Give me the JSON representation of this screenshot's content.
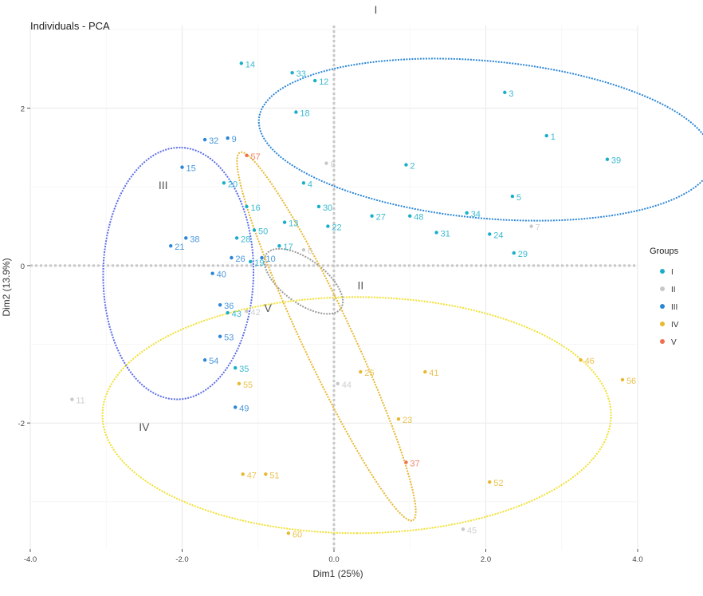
{
  "chart_data": {
    "type": "scatter",
    "title": "Individuals - PCA",
    "xlabel": "Dim1 (25%)",
    "ylabel": "Dim2 (13.9%)",
    "xlim": [
      -4.0,
      4.0
    ],
    "ylim": [
      -3.6,
      3.05
    ],
    "x_ticks": [
      -4.0,
      -2.0,
      0.0,
      2.0,
      4.0
    ],
    "x_tick_labels": [
      "-4.0",
      "-2.0",
      "0.0",
      "2.0",
      "4.0"
    ],
    "y_ticks": [
      2,
      0,
      -2
    ],
    "y_tick_labels": [
      "2",
      "0",
      "-2"
    ],
    "grid": true,
    "legend_title": "Groups",
    "legend_position": "right",
    "groups": [
      {
        "name": "I",
        "color": "#1AAFC9"
      },
      {
        "name": "II",
        "color": "#C8C8C8"
      },
      {
        "name": "III",
        "color": "#2A86D8"
      },
      {
        "name": "IV",
        "color": "#E8B830"
      },
      {
        "name": "V",
        "color": "#F07050"
      }
    ],
    "ellipses": [
      {
        "group": "I",
        "label": "I",
        "color": "#2A86D8",
        "cx": 2.0,
        "cy": 1.6,
        "rx": 3.0,
        "ry": 1.0,
        "angle": -5,
        "label_x": 0.55,
        "label_y": 3.2
      },
      {
        "group": "II",
        "label": "II",
        "color": "#999999",
        "cx": -0.4,
        "cy": -0.2,
        "rx": 0.6,
        "ry": 0.28,
        "angle": -35,
        "label_x": 0.35,
        "label_y": -0.3
      },
      {
        "group": "III",
        "label": "III",
        "color": "#5B6EE8",
        "cx": -2.05,
        "cy": -0.1,
        "rx": 1.6,
        "ry": 0.99,
        "angle": 89,
        "label_x": -2.25,
        "label_y": 0.97
      },
      {
        "group": "IV",
        "label": "IV",
        "color": "#F0E030",
        "cx": 0.3,
        "cy": -1.9,
        "rx": 1.5,
        "ry": 3.35,
        "angle": -90,
        "label_x": -2.5,
        "label_y": -2.1
      },
      {
        "group": "V",
        "label": "V",
        "color": "#E8B830",
        "cx": -0.1,
        "cy": -0.9,
        "rx": 2.6,
        "ry": 0.33,
        "angle": -64,
        "label_x": -0.87,
        "label_y": -0.59
      }
    ],
    "points": [
      {
        "label": "14",
        "x": -1.22,
        "y": 2.57,
        "group": "I"
      },
      {
        "label": "33",
        "x": -0.55,
        "y": 2.45,
        "group": "I"
      },
      {
        "label": "12",
        "x": -0.25,
        "y": 2.35,
        "group": "I"
      },
      {
        "label": "3",
        "x": 2.25,
        "y": 2.2,
        "group": "I"
      },
      {
        "label": "18",
        "x": -0.5,
        "y": 1.95,
        "group": "I"
      },
      {
        "label": "1",
        "x": 2.8,
        "y": 1.65,
        "group": "I"
      },
      {
        "label": "39",
        "x": 3.6,
        "y": 1.35,
        "group": "I"
      },
      {
        "label": "2",
        "x": 0.95,
        "y": 1.28,
        "group": "I"
      },
      {
        "label": "4",
        "x": -0.4,
        "y": 1.05,
        "group": "I"
      },
      {
        "label": "5",
        "x": 2.35,
        "y": 0.88,
        "group": "I"
      },
      {
        "label": "30",
        "x": -0.2,
        "y": 0.75,
        "group": "I"
      },
      {
        "label": "27",
        "x": 0.5,
        "y": 0.63,
        "group": "I"
      },
      {
        "label": "48",
        "x": 1.0,
        "y": 0.63,
        "group": "I"
      },
      {
        "label": "34",
        "x": 1.75,
        "y": 0.67,
        "group": "I"
      },
      {
        "label": "13",
        "x": -0.65,
        "y": 0.55,
        "group": "I"
      },
      {
        "label": "22",
        "x": -0.08,
        "y": 0.5,
        "group": "I"
      },
      {
        "label": "31",
        "x": 1.35,
        "y": 0.42,
        "group": "I"
      },
      {
        "label": "24",
        "x": 2.05,
        "y": 0.4,
        "group": "I"
      },
      {
        "label": "29",
        "x": 2.37,
        "y": 0.16,
        "group": "I"
      },
      {
        "label": "17",
        "x": -0.72,
        "y": 0.25,
        "group": "I"
      },
      {
        "label": "19",
        "x": -1.1,
        "y": 0.05,
        "group": "I"
      },
      {
        "label": "28",
        "x": -1.28,
        "y": 0.35,
        "group": "I"
      },
      {
        "label": "43",
        "x": -1.4,
        "y": -0.6,
        "group": "I"
      },
      {
        "label": "35",
        "x": -1.3,
        "y": -1.3,
        "group": "I"
      },
      {
        "label": "20",
        "x": -1.45,
        "y": 1.05,
        "group": "I"
      },
      {
        "label": "50",
        "x": -1.05,
        "y": 0.45,
        "group": "I"
      },
      {
        "label": "16",
        "x": -1.15,
        "y": 0.75,
        "group": "I"
      },
      {
        "label": "6",
        "x": -0.4,
        "y": 0.2,
        "group": "II"
      },
      {
        "label": "7",
        "x": 2.6,
        "y": 0.5,
        "group": "II"
      },
      {
        "label": "11",
        "x": -3.45,
        "y": -1.7,
        "group": "II"
      },
      {
        "label": "42",
        "x": -1.15,
        "y": -0.58,
        "group": "II"
      },
      {
        "label": "8",
        "x": -0.1,
        "y": 1.3,
        "group": "II"
      },
      {
        "label": "45",
        "x": 1.7,
        "y": -3.35,
        "group": "II"
      },
      {
        "label": "44",
        "x": 0.05,
        "y": -1.5,
        "group": "II"
      },
      {
        "label": "21",
        "x": -2.15,
        "y": 0.25,
        "group": "III"
      },
      {
        "label": "15",
        "x": -2.0,
        "y": 1.25,
        "group": "III"
      },
      {
        "label": "32",
        "x": -1.7,
        "y": 1.6,
        "group": "III"
      },
      {
        "label": "9",
        "x": -1.4,
        "y": 1.62,
        "group": "III"
      },
      {
        "label": "38",
        "x": -1.95,
        "y": 0.35,
        "group": "III"
      },
      {
        "label": "40",
        "x": -1.6,
        "y": -0.1,
        "group": "III"
      },
      {
        "label": "36",
        "x": -1.5,
        "y": -0.5,
        "group": "III"
      },
      {
        "label": "53",
        "x": -1.5,
        "y": -0.9,
        "group": "III"
      },
      {
        "label": "54",
        "x": -1.7,
        "y": -1.2,
        "group": "III"
      },
      {
        "label": "49",
        "x": -1.3,
        "y": -1.8,
        "group": "III"
      },
      {
        "label": "26",
        "x": -1.35,
        "y": 0.1,
        "group": "III"
      },
      {
        "label": "10",
        "x": -0.95,
        "y": 0.1,
        "group": "III"
      },
      {
        "label": "46",
        "x": 3.25,
        "y": -1.2,
        "group": "IV"
      },
      {
        "label": "41",
        "x": 1.2,
        "y": -1.35,
        "group": "IV"
      },
      {
        "label": "25",
        "x": 0.35,
        "y": -1.35,
        "group": "IV"
      },
      {
        "label": "56",
        "x": 3.8,
        "y": -1.45,
        "group": "IV"
      },
      {
        "label": "55",
        "x": -1.25,
        "y": -1.5,
        "group": "IV"
      },
      {
        "label": "23",
        "x": 0.85,
        "y": -1.95,
        "group": "IV"
      },
      {
        "label": "47",
        "x": -1.2,
        "y": -2.65,
        "group": "IV"
      },
      {
        "label": "51",
        "x": -0.9,
        "y": -2.65,
        "group": "IV"
      },
      {
        "label": "52",
        "x": 2.05,
        "y": -2.75,
        "group": "IV"
      },
      {
        "label": "60",
        "x": -0.6,
        "y": -3.4,
        "group": "IV"
      },
      {
        "label": "37",
        "x": 0.95,
        "y": -2.5,
        "group": "V"
      },
      {
        "label": "57",
        "x": -1.15,
        "y": 1.4,
        "group": "V"
      }
    ]
  }
}
